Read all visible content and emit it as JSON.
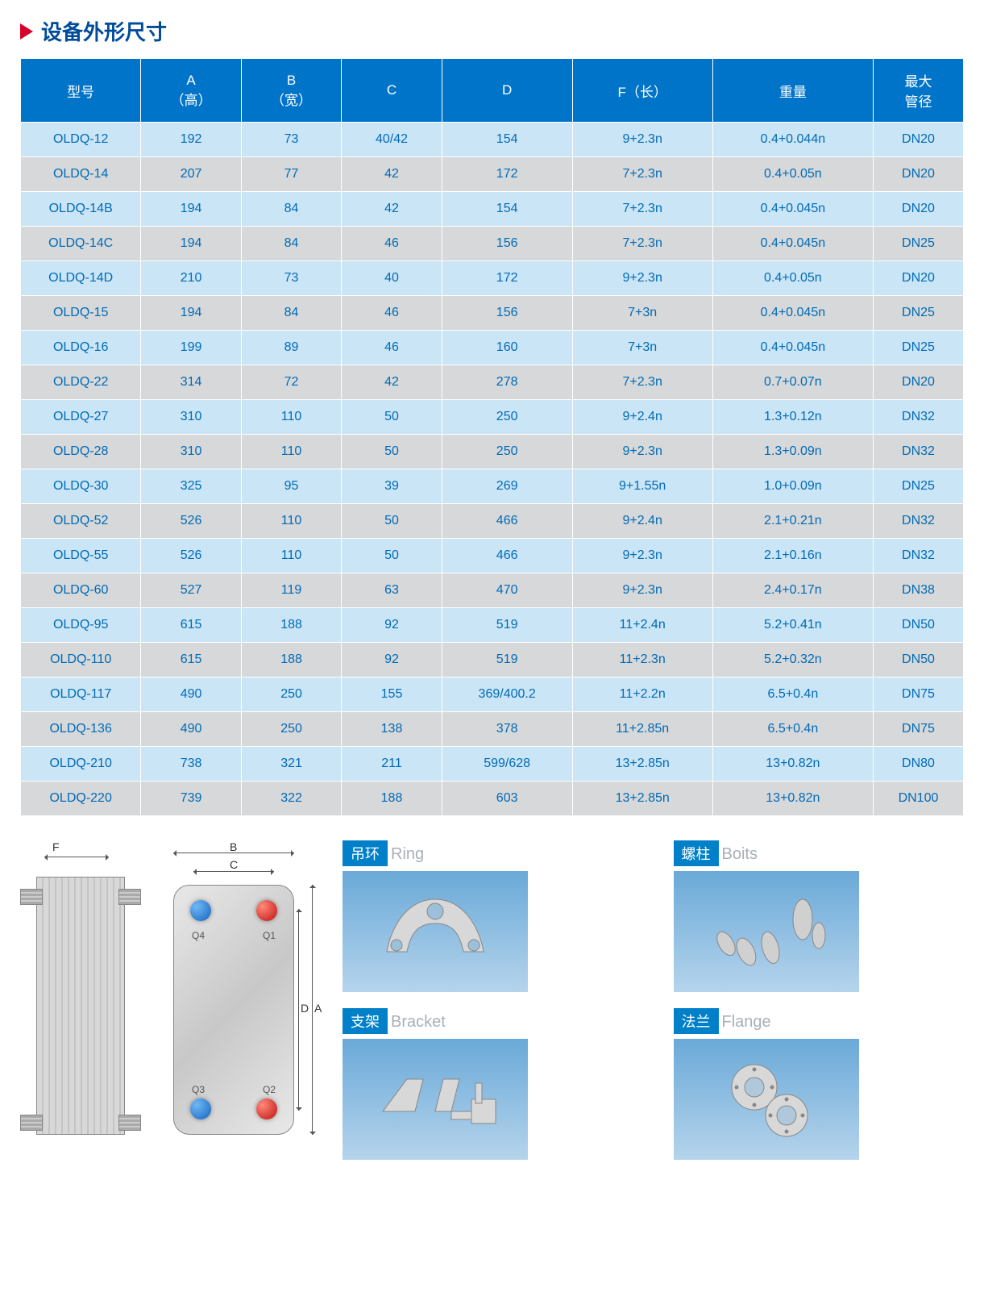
{
  "title": "设备外形尺寸",
  "table": {
    "header_bg": "#0074c8",
    "header_color": "#ffffff",
    "row_odd_bg": "#cae5f5",
    "row_even_bg": "#d6d8d9",
    "cell_color": "#006bb8",
    "columns": [
      "型号",
      "A\n（高）",
      "B\n（宽）",
      "C",
      "D",
      "F（长）",
      "重量",
      "最大\n管径"
    ],
    "col_widths": [
      "12%",
      "10%",
      "10%",
      "10%",
      "13%",
      "14%",
      "16%",
      "9%"
    ],
    "rows": [
      [
        "OLDQ-12",
        "192",
        "73",
        "40/42",
        "154",
        "9+2.3n",
        "0.4+0.044n",
        "DN20"
      ],
      [
        "OLDQ-14",
        "207",
        "77",
        "42",
        "172",
        "7+2.3n",
        "0.4+0.05n",
        "DN20"
      ],
      [
        "OLDQ-14B",
        "194",
        "84",
        "42",
        "154",
        "7+2.3n",
        "0.4+0.045n",
        "DN20"
      ],
      [
        "OLDQ-14C",
        "194",
        "84",
        "46",
        "156",
        "7+2.3n",
        "0.4+0.045n",
        "DN25"
      ],
      [
        "OLDQ-14D",
        "210",
        "73",
        "40",
        "172",
        "9+2.3n",
        "0.4+0.05n",
        "DN20"
      ],
      [
        "OLDQ-15",
        "194",
        "84",
        "46",
        "156",
        "7+3n",
        "0.4+0.045n",
        "DN25"
      ],
      [
        "OLDQ-16",
        "199",
        "89",
        "46",
        "160",
        "7+3n",
        "0.4+0.045n",
        "DN25"
      ],
      [
        "OLDQ-22",
        "314",
        "72",
        "42",
        "278",
        "7+2.3n",
        "0.7+0.07n",
        "DN20"
      ],
      [
        "OLDQ-27",
        "310",
        "110",
        "50",
        "250",
        "9+2.4n",
        "1.3+0.12n",
        "DN32"
      ],
      [
        "OLDQ-28",
        "310",
        "110",
        "50",
        "250",
        "9+2.3n",
        "1.3+0.09n",
        "DN32"
      ],
      [
        "OLDQ-30",
        "325",
        "95",
        "39",
        "269",
        "9+1.55n",
        "1.0+0.09n",
        "DN25"
      ],
      [
        "OLDQ-52",
        "526",
        "110",
        "50",
        "466",
        "9+2.4n",
        "2.1+0.21n",
        "DN32"
      ],
      [
        "OLDQ-55",
        "526",
        "110",
        "50",
        "466",
        "9+2.3n",
        "2.1+0.16n",
        "DN32"
      ],
      [
        "OLDQ-60",
        "527",
        "119",
        "63",
        "470",
        "9+2.3n",
        "2.4+0.17n",
        "DN38"
      ],
      [
        "OLDQ-95",
        "615",
        "188",
        "92",
        "519",
        "11+2.4n",
        "5.2+0.41n",
        "DN50"
      ],
      [
        "OLDQ-110",
        "615",
        "188",
        "92",
        "519",
        "11+2.3n",
        "5.2+0.32n",
        "DN50"
      ],
      [
        "OLDQ-117",
        "490",
        "250",
        "155",
        "369/400.2",
        "11+2.2n",
        "6.5+0.4n",
        "DN75"
      ],
      [
        "OLDQ-136",
        "490",
        "250",
        "138",
        "378",
        "11+2.85n",
        "6.5+0.4n",
        "DN75"
      ],
      [
        "OLDQ-210",
        "738",
        "321",
        "211",
        "599/628",
        "13+2.85n",
        "13+0.82n",
        "DN80"
      ],
      [
        "OLDQ-220",
        "739",
        "322",
        "188",
        "603",
        "13+2.85n",
        "13+0.82n",
        "DN100"
      ]
    ]
  },
  "diagram": {
    "dims": {
      "F": "F",
      "B": "B",
      "C": "C",
      "D": "D",
      "A": "A"
    },
    "ports": {
      "Q1": "Q1",
      "Q2": "Q2",
      "Q3": "Q3",
      "Q4": "Q4"
    }
  },
  "accessories": [
    {
      "cn": "吊环",
      "en": "Ring"
    },
    {
      "cn": "螺柱",
      "en": "Boits"
    },
    {
      "cn": "支架",
      "en": "Bracket"
    },
    {
      "cn": "法兰",
      "en": "Flange"
    }
  ],
  "colors": {
    "title_arrow": "#d6002a",
    "title_text": "#004b9a",
    "label_badge_bg": "#0080c8",
    "label_en_color": "#a8b0b8"
  }
}
